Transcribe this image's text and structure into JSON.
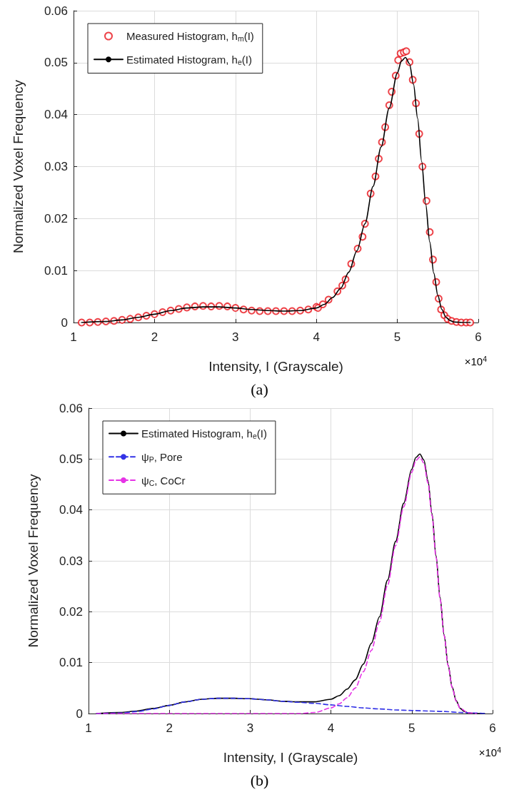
{
  "chart_data": [
    {
      "type": "line",
      "xlabel": "Intensity, I (Grayscale)",
      "ylabel": "Normalized Voxel Frequency",
      "annotations": [
        "×10$^{4}$",
        "(a)"
      ],
      "xlim": [
        1,
        6
      ],
      "xticks": [
        1,
        2,
        3,
        4,
        5,
        6
      ],
      "ylim": [
        0,
        0.06
      ],
      "yticks": [
        0,
        0.01,
        0.02,
        0.03,
        0.04,
        0.05,
        0.06
      ],
      "grid": true,
      "legend": "top left",
      "series": [
        {
          "name": "Measured Histogram, h$_{m}$(I)",
          "type": "scatter",
          "marker": "circle",
          "color": "#e8141c",
          "x": [
            1.1,
            1.2,
            1.3,
            1.4,
            1.5,
            1.6,
            1.7,
            1.8,
            1.9,
            2.0,
            2.1,
            2.2,
            2.3,
            2.4,
            2.5,
            2.6,
            2.7,
            2.8,
            2.9,
            3.0,
            3.1,
            3.2,
            3.3,
            3.4,
            3.5,
            3.6,
            3.7,
            3.8,
            3.9,
            4.0,
            4.02,
            4.08,
            4.15,
            4.26,
            4.32,
            4.36,
            4.43,
            4.51,
            4.57,
            4.6,
            4.67,
            4.73,
            4.77,
            4.81,
            4.85,
            4.9,
            4.93,
            4.98,
            5.01,
            5.04,
            5.08,
            5.11,
            5.15,
            5.19,
            5.23,
            5.27,
            5.31,
            5.36,
            5.4,
            5.44,
            5.48,
            5.51,
            5.54,
            5.58,
            5.62,
            5.67,
            5.73,
            5.79,
            5.85,
            5.9
          ],
          "values": [
            0,
            0,
            0.0001,
            0.0002,
            0.0003,
            0.0005,
            0.0007,
            0.001,
            0.0013,
            0.0016,
            0.002,
            0.0023,
            0.0026,
            0.0029,
            0.0031,
            0.0032,
            0.0031,
            0.0032,
            0.0031,
            0.0028,
            0.0025,
            0.0023,
            0.0022,
            0.0022,
            0.0022,
            0.0022,
            0.0022,
            0.0023,
            0.0025,
            0.003,
            0.0028,
            0.0035,
            0.0044,
            0.006,
            0.0071,
            0.0083,
            0.0113,
            0.0142,
            0.0165,
            0.019,
            0.0248,
            0.0281,
            0.0315,
            0.0347,
            0.0376,
            0.0418,
            0.0444,
            0.0475,
            0.0505,
            0.0518,
            0.052,
            0.0522,
            0.0501,
            0.0467,
            0.0422,
            0.0363,
            0.03,
            0.0234,
            0.0174,
            0.0121,
            0.0078,
            0.0046,
            0.0025,
            0.0014,
            0.0007,
            0.0003,
            0.0001,
            0,
            0,
            0
          ]
        },
        {
          "name": "Estimated Histogram, h$_{e}$(I)",
          "marker": "none",
          "line_style": "solid",
          "color": "#000000",
          "x": [
            1.1,
            1.4,
            1.6,
            1.8,
            2.0,
            2.2,
            2.4,
            2.6,
            2.8,
            3.0,
            3.2,
            3.4,
            3.6,
            3.8,
            4.0,
            4.1,
            4.2,
            4.3,
            4.4,
            4.5,
            4.6,
            4.7,
            4.8,
            4.9,
            5.0,
            5.05,
            5.1,
            5.15,
            5.2,
            5.25,
            5.3,
            5.35,
            5.4,
            5.45,
            5.5,
            5.55,
            5.6,
            5.65,
            5.7,
            5.8,
            5.9
          ],
          "values": [
            0,
            0.0002,
            0.0005,
            0.001,
            0.0016,
            0.0023,
            0.0028,
            0.003,
            0.003,
            0.0028,
            0.0025,
            0.0023,
            0.0022,
            0.0023,
            0.0028,
            0.0035,
            0.0048,
            0.0066,
            0.0097,
            0.0138,
            0.019,
            0.0262,
            0.0338,
            0.0413,
            0.048,
            0.0503,
            0.051,
            0.0498,
            0.0458,
            0.0393,
            0.031,
            0.0228,
            0.0155,
            0.0095,
            0.0052,
            0.0025,
            0.001,
            0.0004,
            0.0001,
            0,
            0
          ]
        }
      ]
    },
    {
      "type": "line",
      "xlabel": "Intensity, I (Grayscale)",
      "ylabel": "Normalized Voxel Frequency",
      "annotations": [
        "×10$^{4}$",
        "(b)"
      ],
      "xlim": [
        1,
        6
      ],
      "xticks": [
        1,
        2,
        3,
        4,
        5,
        6
      ],
      "ylim": [
        0,
        0.06
      ],
      "yticks": [
        0,
        0.01,
        0.02,
        0.03,
        0.04,
        0.05,
        0.06
      ],
      "grid": true,
      "legend": "top left",
      "series": [
        {
          "name": "Estimated Histogram, h$_{e}$(I)",
          "marker": "none",
          "line_style": "solid",
          "color": "#000000",
          "x": [
            1.1,
            1.4,
            1.6,
            1.8,
            2.0,
            2.2,
            2.4,
            2.6,
            2.8,
            3.0,
            3.2,
            3.4,
            3.6,
            3.8,
            4.0,
            4.1,
            4.2,
            4.3,
            4.4,
            4.5,
            4.6,
            4.7,
            4.8,
            4.9,
            5.0,
            5.05,
            5.1,
            5.15,
            5.2,
            5.25,
            5.3,
            5.35,
            5.4,
            5.45,
            5.5,
            5.55,
            5.6,
            5.65,
            5.7,
            5.8,
            5.9
          ],
          "values": [
            0,
            0.0002,
            0.0005,
            0.001,
            0.0016,
            0.0023,
            0.0028,
            0.003,
            0.003,
            0.0029,
            0.0027,
            0.0024,
            0.0023,
            0.0023,
            0.0028,
            0.0035,
            0.0048,
            0.0066,
            0.0097,
            0.0138,
            0.019,
            0.0262,
            0.0338,
            0.0413,
            0.048,
            0.0503,
            0.051,
            0.0498,
            0.0458,
            0.0393,
            0.031,
            0.0228,
            0.0155,
            0.0095,
            0.0052,
            0.0025,
            0.001,
            0.0004,
            0.0001,
            0,
            0
          ]
        },
        {
          "name": "ψ$_{P}$, Pore",
          "marker": "none",
          "line_style": "dashed",
          "color": "#3333e6",
          "x": [
            1.1,
            1.4,
            1.6,
            1.8,
            2.0,
            2.2,
            2.4,
            2.6,
            2.8,
            3.0,
            3.2,
            3.4,
            3.6,
            3.8,
            4.0,
            4.2,
            4.4,
            4.6,
            4.8,
            5.0,
            5.2,
            5.4,
            5.6,
            5.8,
            5.9
          ],
          "values": [
            0,
            0.0001,
            0.0004,
            0.0009,
            0.0016,
            0.0023,
            0.0028,
            0.003,
            0.003,
            0.0029,
            0.0027,
            0.0024,
            0.0022,
            0.002,
            0.0017,
            0.0014,
            0.0011,
            0.0009,
            0.0007,
            0.0006,
            0.0005,
            0.0004,
            0.0002,
            0.0001,
            0
          ]
        },
        {
          "name": "ψ$_{C}$, CoCr",
          "marker": "none",
          "line_style": "dashed",
          "color": "#e633e6",
          "x": [
            1.1,
            3.0,
            3.6,
            3.8,
            4.0,
            4.1,
            4.2,
            4.3,
            4.4,
            4.5,
            4.6,
            4.7,
            4.8,
            4.9,
            5.0,
            5.05,
            5.1,
            5.15,
            5.2,
            5.25,
            5.3,
            5.35,
            5.4,
            5.45,
            5.5,
            5.55,
            5.6,
            5.7,
            5.8
          ],
          "values": [
            0,
            0,
            0,
            0.0002,
            0.0011,
            0.0019,
            0.0031,
            0.005,
            0.0082,
            0.0124,
            0.018,
            0.0252,
            0.033,
            0.0406,
            0.0474,
            0.0497,
            0.0504,
            0.0492,
            0.0453,
            0.0389,
            0.0307,
            0.0226,
            0.0153,
            0.0094,
            0.0051,
            0.0024,
            0.001,
            0.0001,
            0
          ]
        }
      ]
    }
  ]
}
